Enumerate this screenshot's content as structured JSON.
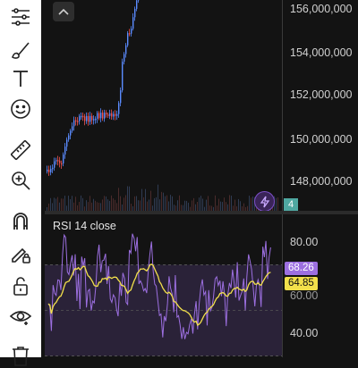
{
  "toolbar": {
    "items": [
      {
        "name": "tune-icon"
      },
      {
        "name": "brush-icon"
      },
      {
        "name": "text-icon"
      },
      {
        "name": "emoji-icon"
      },
      {
        "name": "ruler-icon"
      },
      {
        "name": "zoom-in-icon"
      },
      {
        "name": "magnet-icon"
      },
      {
        "name": "pencil-lock-icon"
      },
      {
        "name": "lock-icon"
      },
      {
        "name": "eye-icon"
      },
      {
        "name": "trash-icon"
      }
    ]
  },
  "main_chart": {
    "price_labels": [
      "156,000,000",
      "154,000,000",
      "152,000,000",
      "150,000,000",
      "148,000,000"
    ],
    "count_badge": "4",
    "colors": {
      "up": "#5b8cff",
      "down": "#ef5350",
      "volume": "#3a3a3a"
    }
  },
  "rsi": {
    "title": "RSI 14 close",
    "scale_labels": [
      "80.00",
      "60.00",
      "40.00"
    ],
    "current_value": "68.26",
    "ma_value": "64.85",
    "colors": {
      "rsi": "#9c6fe0",
      "ma": "#f2e04b",
      "band": "#2a2238"
    }
  }
}
